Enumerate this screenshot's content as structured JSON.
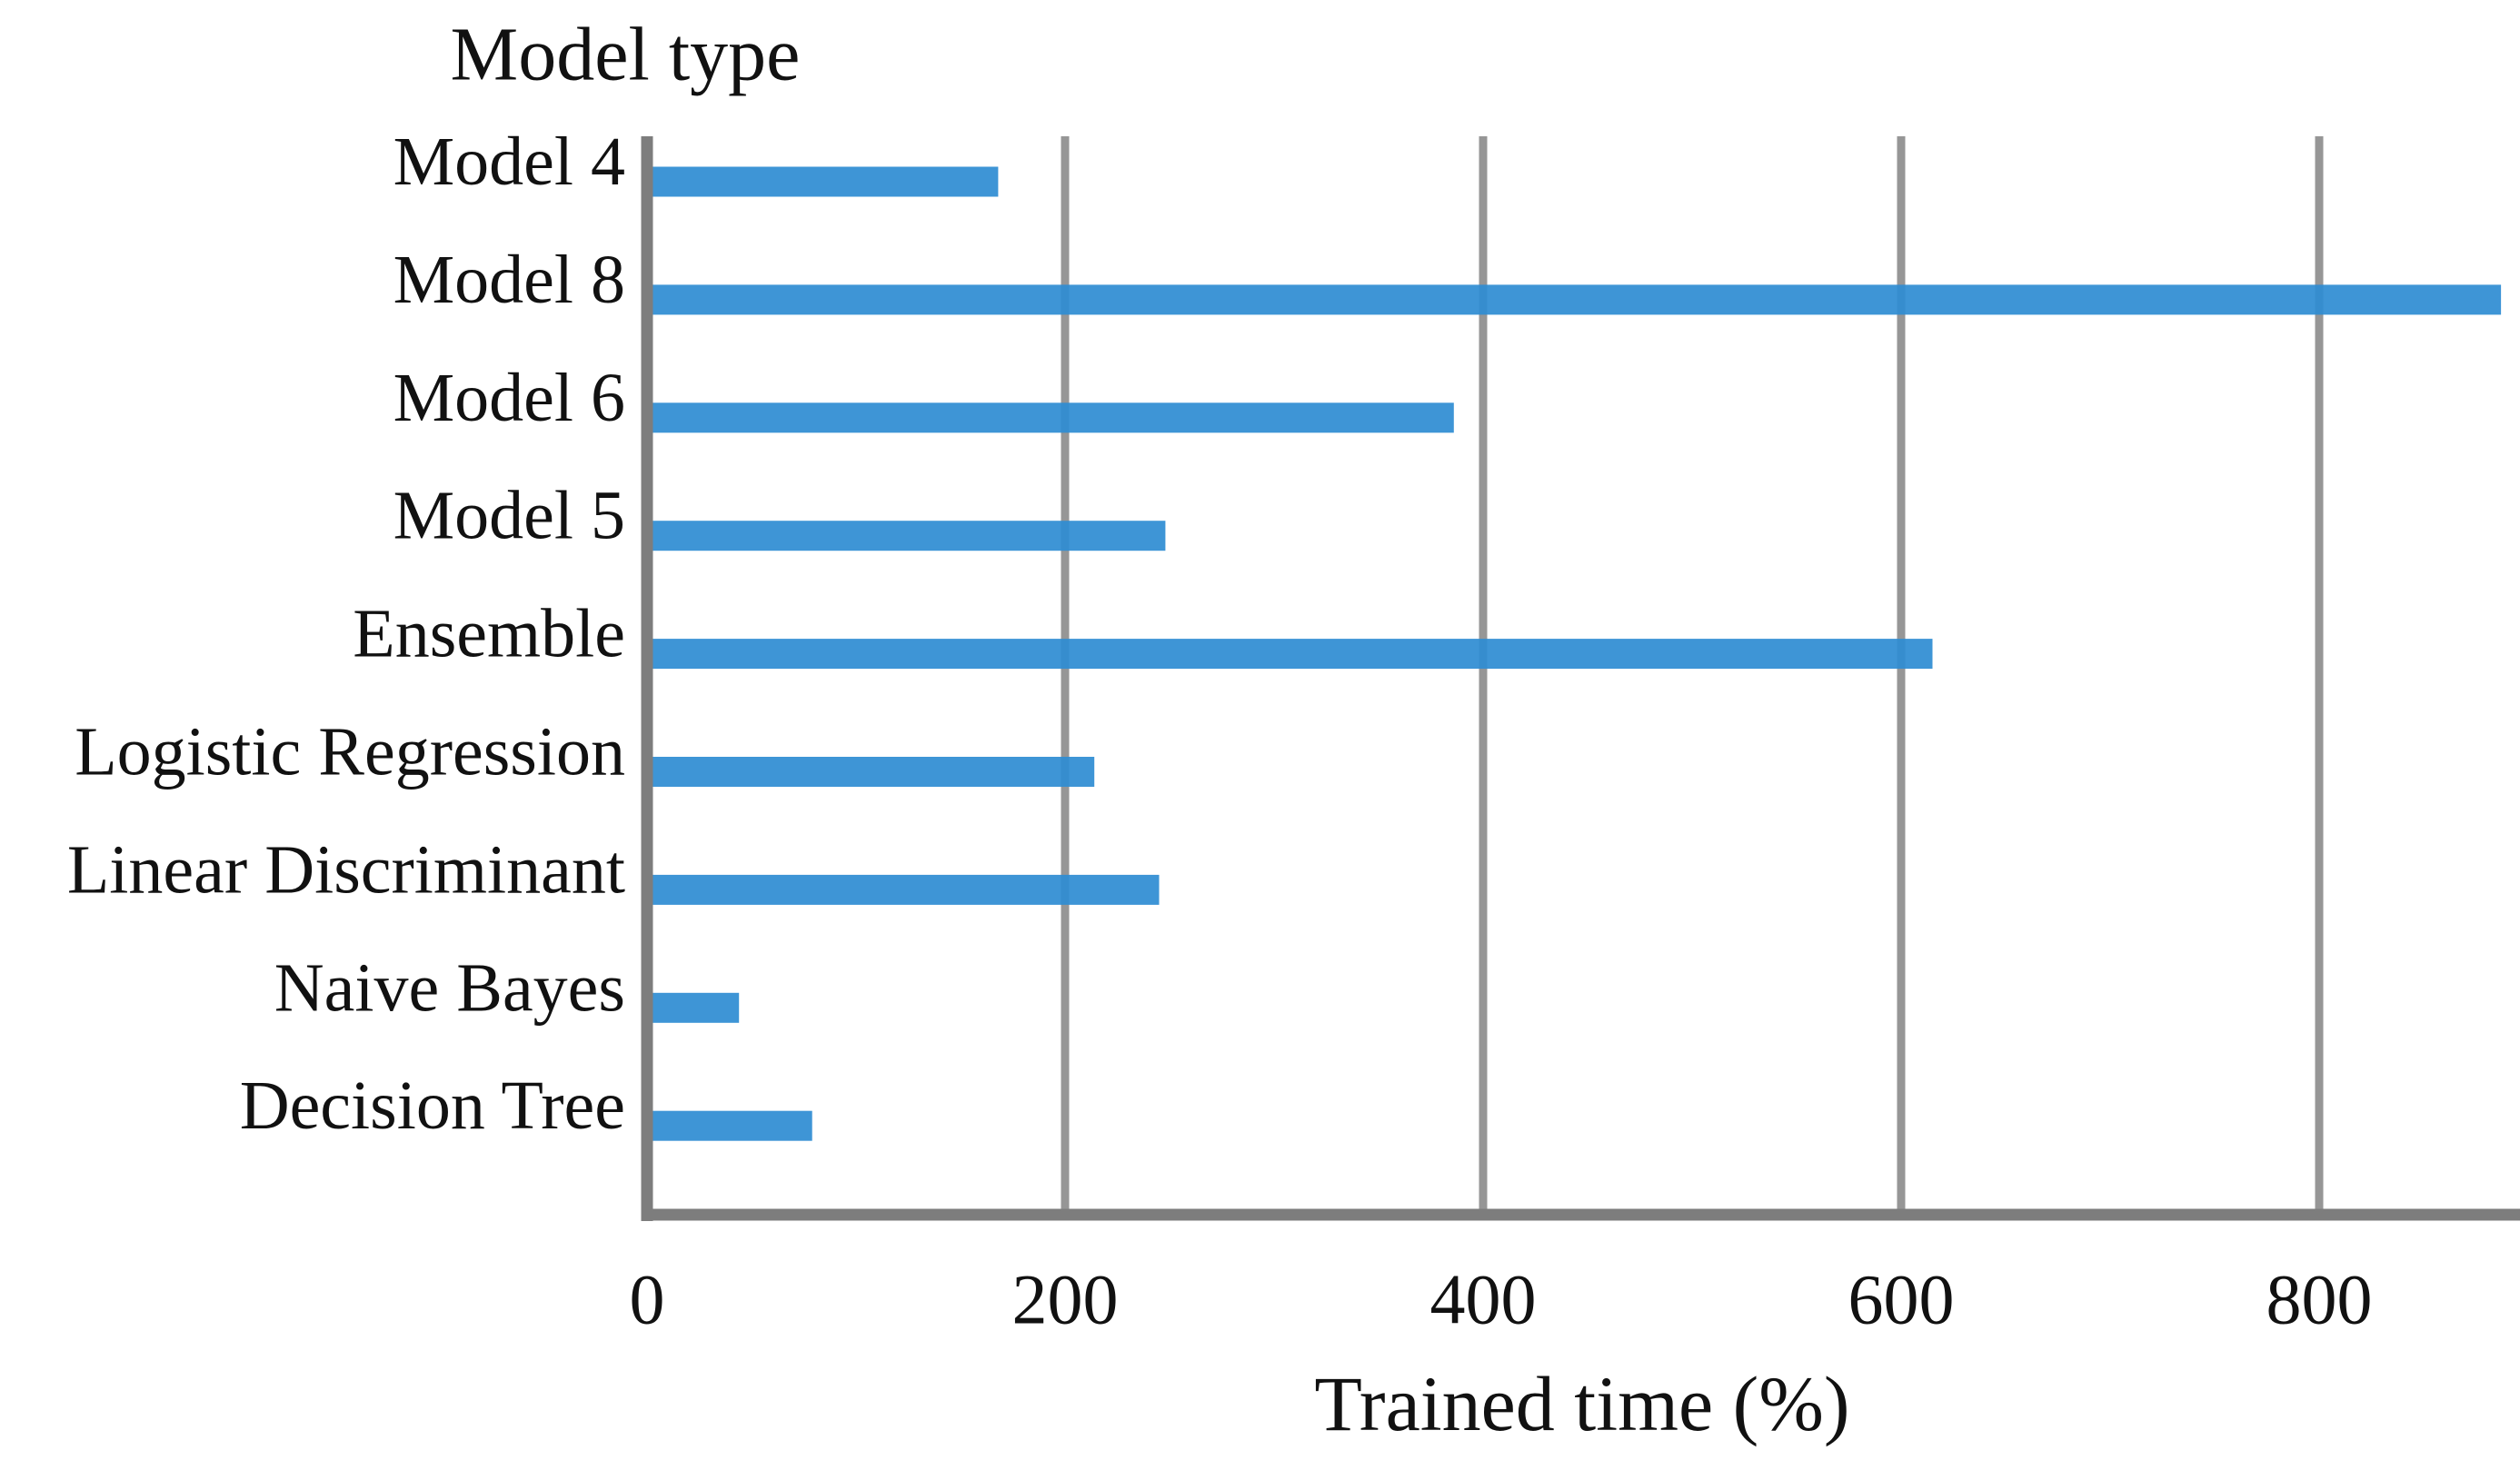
{
  "chart_data": {
    "type": "bar",
    "orientation": "horizontal",
    "title": "Model type",
    "xlabel": "Trained time (%)",
    "categories": [
      "Model 4",
      "Model 8",
      "Model 6",
      "Model 5",
      "Ensemble",
      "Logistic Regression",
      "Linear Discriminant",
      "Naive Bayes",
      "Decision Tree"
    ],
    "values": [
      168,
      887,
      386,
      248,
      615,
      214,
      245,
      44,
      79
    ],
    "xticks": [
      0,
      200,
      400,
      600,
      800
    ],
    "xlim": [
      0,
      897
    ],
    "grid": "vertical-only",
    "legend": "none",
    "colors": {
      "bar": "#2e8cd3",
      "grid": "#969696",
      "axis": "#7d7d7d",
      "text": "#111111",
      "background": "#ffffff"
    }
  }
}
